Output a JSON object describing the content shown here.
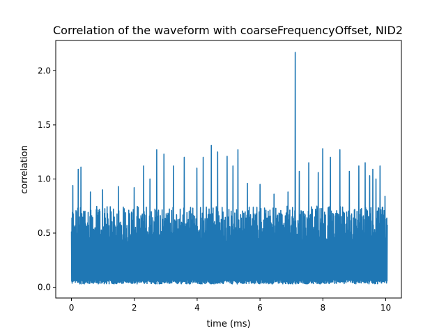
{
  "chart_data": {
    "type": "line",
    "title": "Correlation of the waveform with coarseFrequencyOffset, NID2",
    "xlabel": "time (ms)",
    "ylabel": "correlation",
    "xlim": [
      -0.5,
      10.5
    ],
    "ylim": [
      -0.1,
      2.28
    ],
    "x_ticks": [
      0,
      2,
      4,
      6,
      8,
      10
    ],
    "x_tick_labels": [
      "0",
      "2",
      "4",
      "6",
      "8",
      "10"
    ],
    "y_ticks": [
      0.0,
      0.5,
      1.0,
      1.5,
      2.0
    ],
    "y_tick_labels": [
      "0.0",
      "0.5",
      "1.0",
      "1.5",
      "2.0"
    ],
    "grid": false,
    "series": [
      {
        "color": "#1f77b4",
        "x_range": [
          0,
          10.05
        ],
        "baseline_min": 0.03,
        "typical_max": 0.75,
        "peaks": [
          {
            "x": 0.05,
            "y": 0.94
          },
          {
            "x": 0.22,
            "y": 1.09
          },
          {
            "x": 0.3,
            "y": 1.11
          },
          {
            "x": 0.6,
            "y": 0.88
          },
          {
            "x": 1.0,
            "y": 0.9
          },
          {
            "x": 1.5,
            "y": 0.93
          },
          {
            "x": 1.65,
            "y": 0.74
          },
          {
            "x": 2.0,
            "y": 0.92
          },
          {
            "x": 2.3,
            "y": 1.12
          },
          {
            "x": 2.5,
            "y": 1.0
          },
          {
            "x": 2.72,
            "y": 1.27
          },
          {
            "x": 2.95,
            "y": 1.23
          },
          {
            "x": 3.25,
            "y": 1.12
          },
          {
            "x": 3.6,
            "y": 1.2
          },
          {
            "x": 4.0,
            "y": 1.1
          },
          {
            "x": 4.2,
            "y": 1.2
          },
          {
            "x": 4.45,
            "y": 1.31
          },
          {
            "x": 4.65,
            "y": 1.25
          },
          {
            "x": 4.95,
            "y": 1.21
          },
          {
            "x": 5.15,
            "y": 1.12
          },
          {
            "x": 5.3,
            "y": 1.27
          },
          {
            "x": 5.6,
            "y": 0.96
          },
          {
            "x": 6.0,
            "y": 0.95
          },
          {
            "x": 6.45,
            "y": 0.86
          },
          {
            "x": 6.9,
            "y": 0.88
          },
          {
            "x": 7.13,
            "y": 2.17
          },
          {
            "x": 7.25,
            "y": 1.07
          },
          {
            "x": 7.55,
            "y": 1.15
          },
          {
            "x": 7.85,
            "y": 1.06
          },
          {
            "x": 8.0,
            "y": 1.28
          },
          {
            "x": 8.25,
            "y": 1.2
          },
          {
            "x": 8.55,
            "y": 1.27
          },
          {
            "x": 8.85,
            "y": 1.07
          },
          {
            "x": 9.15,
            "y": 1.12
          },
          {
            "x": 9.35,
            "y": 1.15
          },
          {
            "x": 9.5,
            "y": 1.03
          },
          {
            "x": 9.6,
            "y": 1.09
          },
          {
            "x": 9.7,
            "y": 1.0
          },
          {
            "x": 9.82,
            "y": 1.12
          },
          {
            "x": 9.98,
            "y": 0.84
          }
        ]
      }
    ]
  }
}
